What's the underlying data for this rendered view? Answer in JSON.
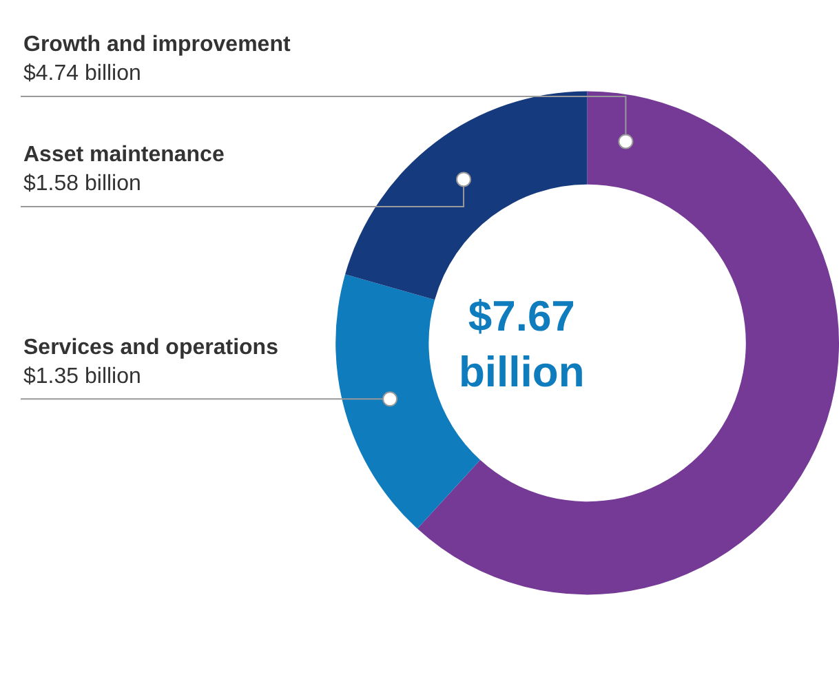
{
  "chart_data": {
    "type": "donut",
    "categories": [
      "Growth and improvement",
      "Services and operations",
      "Asset maintenance"
    ],
    "values": [
      4.74,
      1.35,
      1.58
    ],
    "value_labels": [
      "$4.74 billion",
      "$1.35 billion",
      "$1.58 billion"
    ],
    "colors": [
      "#743a96",
      "#0f7dbd",
      "#163a7e"
    ],
    "annotations": [
      "$7.67 billion"
    ],
    "legend": false
  }
}
